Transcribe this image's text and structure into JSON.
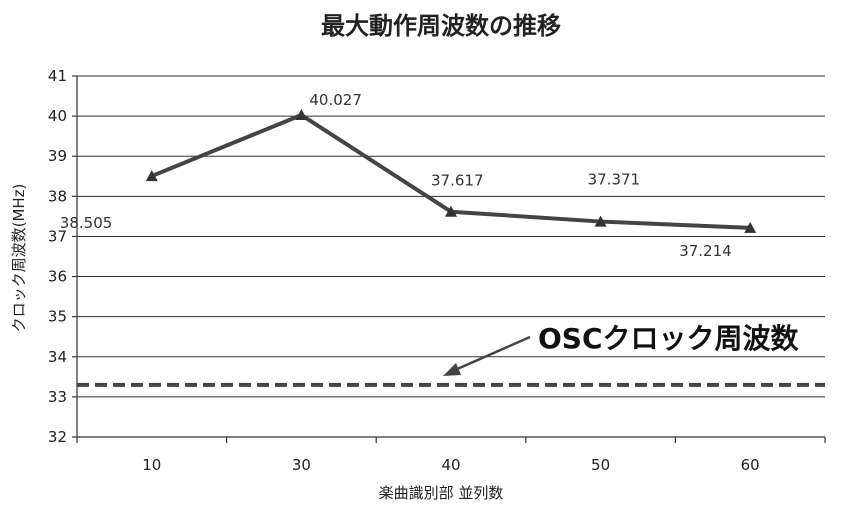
{
  "chart_data": {
    "type": "line",
    "title": "最大動作周波数の推移",
    "xlabel": "楽曲識別部 並列数",
    "ylabel": "クロック周波数(MHz)",
    "categories": [
      "10",
      "30",
      "40",
      "50",
      "60"
    ],
    "y_ticks": [
      "32",
      "33",
      "34",
      "35",
      "36",
      "37",
      "38",
      "39",
      "40",
      "41"
    ],
    "ylim": [
      32,
      41
    ],
    "grid": true,
    "series": [
      {
        "values": [
          38.505,
          40.027,
          37.617,
          37.371,
          37.214
        ],
        "labels": [
          "38.505",
          "40.027",
          "37.617",
          "37.371",
          "37.214"
        ],
        "color": "#444444",
        "marker": "triangle"
      }
    ],
    "reference_line": {
      "value": 33.3,
      "label": "OSCクロック周波数",
      "style": "dashed",
      "color": "#444444"
    }
  }
}
